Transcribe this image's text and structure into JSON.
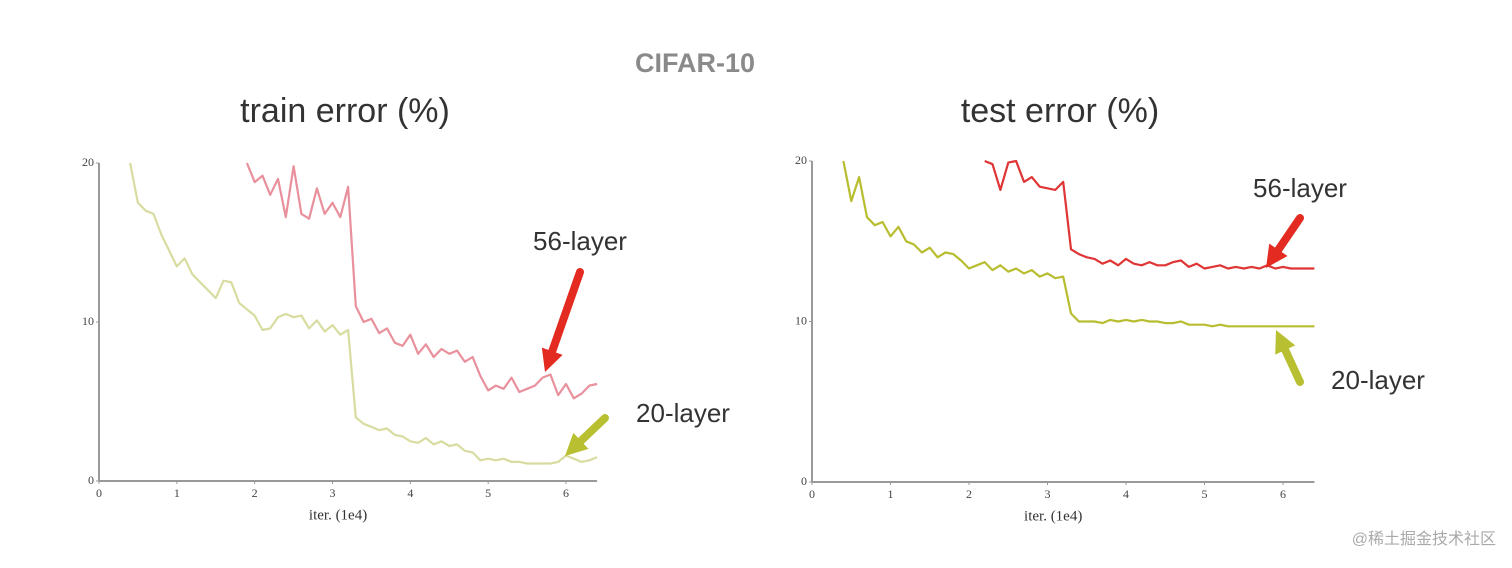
{
  "suptitle": "CIFAR-10",
  "watermark": "@稀土掘金技术社区",
  "chart_data": [
    {
      "type": "line",
      "title": "train error (%)",
      "x_label": "iter. (1e4)",
      "xlim": [
        0,
        6.4
      ],
      "ylim": [
        0,
        20
      ],
      "xticks": [
        0,
        1,
        2,
        3,
        4,
        5,
        6
      ],
      "yticks": [
        0,
        10,
        20
      ],
      "grid": false,
      "x": [
        0.4,
        0.5,
        0.6,
        0.7,
        0.8,
        0.9,
        1.0,
        1.1,
        1.2,
        1.3,
        1.4,
        1.5,
        1.6,
        1.7,
        1.8,
        1.9,
        2.0,
        2.1,
        2.2,
        2.3,
        2.4,
        2.5,
        2.6,
        2.7,
        2.8,
        2.9,
        3.0,
        3.1,
        3.2,
        3.3,
        3.4,
        3.5,
        3.6,
        3.7,
        3.8,
        3.9,
        4.0,
        4.1,
        4.2,
        4.3,
        4.4,
        4.5,
        4.6,
        4.7,
        4.8,
        4.9,
        5.0,
        5.1,
        5.2,
        5.3,
        5.4,
        5.5,
        5.6,
        5.7,
        5.8,
        5.9,
        6.0,
        6.1,
        6.2,
        6.3,
        6.4
      ],
      "series": [
        {
          "name": "56-layer",
          "color": "#e8909c",
          "arrow_color": "#e32b22",
          "values": [
            null,
            null,
            null,
            null,
            null,
            null,
            null,
            null,
            null,
            null,
            null,
            null,
            null,
            null,
            null,
            20,
            18.8,
            19.2,
            18,
            19,
            16.6,
            19.8,
            16.8,
            16.5,
            18.4,
            16.8,
            17.5,
            16.6,
            18.5,
            11,
            10,
            10.2,
            9.3,
            9.6,
            8.7,
            8.5,
            9.2,
            8,
            8.6,
            7.8,
            8.3,
            8,
            8.2,
            7.5,
            7.8,
            6.6,
            5.7,
            6,
            5.8,
            6.5,
            5.6,
            5.8,
            6,
            6.5,
            6.7,
            5.4,
            6.1,
            5.2,
            5.5,
            6,
            6.1
          ]
        },
        {
          "name": "20-layer",
          "color": "#d9dca0",
          "arrow_color": "#b8c032",
          "values": [
            20,
            17.5,
            17,
            16.8,
            15.5,
            14.5,
            13.5,
            14,
            13,
            12.5,
            12,
            11.5,
            12.6,
            12.5,
            11.2,
            10.8,
            10.4,
            9.5,
            9.6,
            10.3,
            10.5,
            10.3,
            10.4,
            9.6,
            10.1,
            9.4,
            9.8,
            9.2,
            9.5,
            4,
            3.6,
            3.4,
            3.2,
            3.3,
            2.9,
            2.8,
            2.5,
            2.4,
            2.7,
            2.3,
            2.5,
            2.2,
            2.3,
            1.9,
            1.8,
            1.3,
            1.4,
            1.3,
            1.4,
            1.2,
            1.2,
            1.1,
            1.1,
            1.1,
            1.1,
            1.2,
            1.6,
            1.4,
            1.2,
            1.3,
            1.5
          ]
        }
      ]
    },
    {
      "type": "line",
      "title": "test error (%)",
      "x_label": "iter. (1e4)",
      "xlim": [
        0,
        6.4
      ],
      "ylim": [
        0,
        20
      ],
      "xticks": [
        0,
        1,
        2,
        3,
        4,
        5,
        6
      ],
      "yticks": [
        0,
        10,
        20
      ],
      "grid": false,
      "x": [
        0.4,
        0.5,
        0.6,
        0.7,
        0.8,
        0.9,
        1.0,
        1.1,
        1.2,
        1.3,
        1.4,
        1.5,
        1.6,
        1.7,
        1.8,
        1.9,
        2.0,
        2.1,
        2.2,
        2.3,
        2.4,
        2.5,
        2.6,
        2.7,
        2.8,
        2.9,
        3.0,
        3.1,
        3.2,
        3.3,
        3.4,
        3.5,
        3.6,
        3.7,
        3.8,
        3.9,
        4.0,
        4.1,
        4.2,
        4.3,
        4.4,
        4.5,
        4.6,
        4.7,
        4.8,
        4.9,
        5.0,
        5.1,
        5.2,
        5.3,
        5.4,
        5.5,
        5.6,
        5.7,
        5.8,
        5.9,
        6.0,
        6.1,
        6.2,
        6.3,
        6.4
      ],
      "series": [
        {
          "name": "56-layer",
          "color": "#e03535",
          "arrow_color": "#e32b22",
          "values": [
            null,
            null,
            null,
            null,
            null,
            null,
            null,
            null,
            null,
            null,
            null,
            null,
            null,
            null,
            null,
            null,
            null,
            null,
            20,
            19.8,
            18.2,
            19.9,
            20,
            18.7,
            19,
            18.4,
            18.3,
            18.2,
            18.7,
            14.5,
            14.2,
            14,
            13.9,
            13.6,
            13.8,
            13.5,
            13.9,
            13.6,
            13.5,
            13.7,
            13.5,
            13.5,
            13.7,
            13.8,
            13.4,
            13.6,
            13.3,
            13.4,
            13.5,
            13.3,
            13.4,
            13.3,
            13.4,
            13.3,
            13.5,
            13.3,
            13.4,
            13.3,
            13.3,
            13.3,
            13.3
          ]
        },
        {
          "name": "20-layer",
          "color": "#b8bd30",
          "arrow_color": "#b8c032",
          "values": [
            20,
            17.5,
            19,
            16.5,
            16,
            16.2,
            15.3,
            15.9,
            15,
            14.8,
            14.3,
            14.6,
            14,
            14.3,
            14.2,
            13.8,
            13.3,
            13.5,
            13.7,
            13.2,
            13.5,
            13.1,
            13.3,
            13,
            13.2,
            12.8,
            13,
            12.7,
            12.8,
            10.5,
            10,
            10,
            10,
            9.9,
            10.1,
            10,
            10.1,
            10,
            10.1,
            10,
            10,
            9.9,
            9.9,
            10,
            9.8,
            9.8,
            9.8,
            9.7,
            9.8,
            9.7,
            9.7,
            9.7,
            9.7,
            9.7,
            9.7,
            9.7,
            9.7,
            9.7,
            9.7,
            9.7,
            9.7
          ]
        }
      ]
    }
  ]
}
